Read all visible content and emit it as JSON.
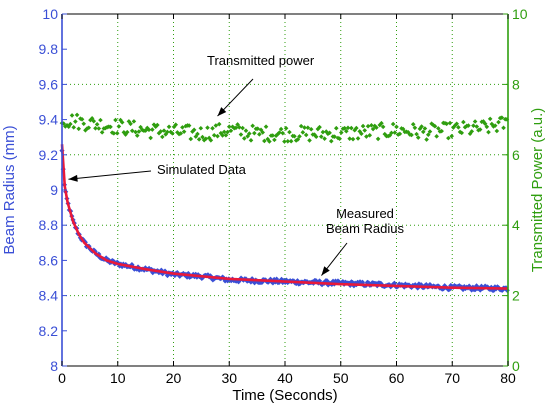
{
  "chart_data": {
    "type": "scatter",
    "title": "",
    "xlabel": "Time (Seconds)",
    "ylabel": "Beam Radius (mm)",
    "y2label": "Transmitted Power (a.u.)",
    "xlim": [
      0,
      80
    ],
    "ylim": [
      8,
      10
    ],
    "y2lim": [
      0,
      10
    ],
    "x_ticks": [
      0,
      10,
      20,
      30,
      40,
      50,
      60,
      70,
      80
    ],
    "y_ticks": [
      8,
      8.2,
      8.4,
      8.6,
      8.8,
      9,
      9.2,
      9.4,
      9.6,
      9.8,
      10
    ],
    "y2_ticks": [
      0,
      2,
      4,
      6,
      8,
      10
    ],
    "grid": true,
    "colors": {
      "left_axis": "#3a4fd6",
      "right_axis": "#2f9e0f",
      "measured": "#3a4fd6",
      "simulated": "#e8193a",
      "power": "#2f9e0f",
      "grid": "#2f9e0f"
    },
    "series": [
      {
        "name": "Measured Beam Radius",
        "axis": "left",
        "style": "diamond-markers",
        "x": [
          0,
          0.5,
          1,
          2,
          3,
          4,
          5,
          6,
          8,
          10,
          15,
          20,
          25,
          30,
          40,
          50,
          60,
          70,
          80
        ],
        "y": [
          9.22,
          9.0,
          8.93,
          8.82,
          8.75,
          8.7,
          8.67,
          8.64,
          8.6,
          8.58,
          8.55,
          8.52,
          8.51,
          8.49,
          8.48,
          8.47,
          8.46,
          8.445,
          8.44
        ]
      },
      {
        "name": "Simulated Data",
        "axis": "left",
        "style": "line",
        "x": [
          0,
          0.5,
          1,
          2,
          3,
          4,
          5,
          6,
          8,
          10,
          15,
          20,
          25,
          30,
          40,
          50,
          60,
          70,
          80
        ],
        "y": [
          9.26,
          9.02,
          8.93,
          8.82,
          8.75,
          8.7,
          8.67,
          8.64,
          8.6,
          8.58,
          8.55,
          8.525,
          8.51,
          8.495,
          8.48,
          8.465,
          8.455,
          8.445,
          8.44
        ]
      },
      {
        "name": "Transmitted power",
        "axis": "right",
        "style": "diamond-markers",
        "x": [
          0,
          5,
          10,
          15,
          20,
          25,
          30,
          35,
          40,
          45,
          50,
          55,
          60,
          65,
          70,
          75,
          80
        ],
        "y": [
          7.0,
          6.9,
          6.8,
          6.7,
          6.65,
          6.6,
          6.7,
          6.6,
          6.6,
          6.6,
          6.6,
          6.65,
          6.7,
          6.65,
          6.7,
          6.75,
          6.9
        ]
      }
    ],
    "annotations": [
      {
        "text": "Transmitted power",
        "points_to": {
          "x": 27,
          "y": 9.42,
          "axis": "left"
        }
      },
      {
        "text": "Simulated Data",
        "points_to": {
          "x": 0.8,
          "y": 9.05,
          "axis": "left"
        }
      },
      {
        "text_lines": [
          "Measured",
          "Beam Radius"
        ],
        "points_to": {
          "x": 46,
          "y": 8.48,
          "axis": "left"
        }
      }
    ]
  }
}
